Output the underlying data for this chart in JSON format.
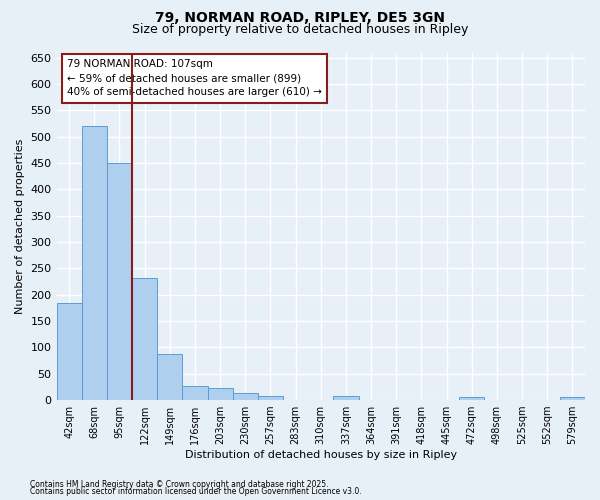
{
  "title_line1": "79, NORMAN ROAD, RIPLEY, DE5 3GN",
  "title_line2": "Size of property relative to detached houses in Ripley",
  "xlabel": "Distribution of detached houses by size in Ripley",
  "ylabel": "Number of detached properties",
  "bar_labels": [
    "42sqm",
    "68sqm",
    "95sqm",
    "122sqm",
    "149sqm",
    "176sqm",
    "203sqm",
    "230sqm",
    "257sqm",
    "283sqm",
    "310sqm",
    "337sqm",
    "364sqm",
    "391sqm",
    "418sqm",
    "445sqm",
    "472sqm",
    "498sqm",
    "525sqm",
    "552sqm",
    "579sqm"
  ],
  "bar_values": [
    185,
    520,
    450,
    232,
    87,
    27,
    22,
    13,
    8,
    0,
    0,
    8,
    0,
    0,
    0,
    0,
    5,
    0,
    0,
    0,
    5
  ],
  "bar_color": "#aed0ee",
  "bar_edge_color": "#5b9bd5",
  "bg_color": "#e8f0f7",
  "grid_color": "#ffffff",
  "vline_x": 2.5,
  "vline_color": "#8b1a1a",
  "annotation_text": "79 NORMAN ROAD: 107sqm\n← 59% of detached houses are smaller (899)\n40% of semi-detached houses are larger (610) →",
  "ylim": [
    0,
    660
  ],
  "yticks": [
    0,
    50,
    100,
    150,
    200,
    250,
    300,
    350,
    400,
    450,
    500,
    550,
    600,
    650
  ],
  "footnote_line1": "Contains HM Land Registry data © Crown copyright and database right 2025.",
  "footnote_line2": "Contains public sector information licensed under the Open Government Licence v3.0."
}
